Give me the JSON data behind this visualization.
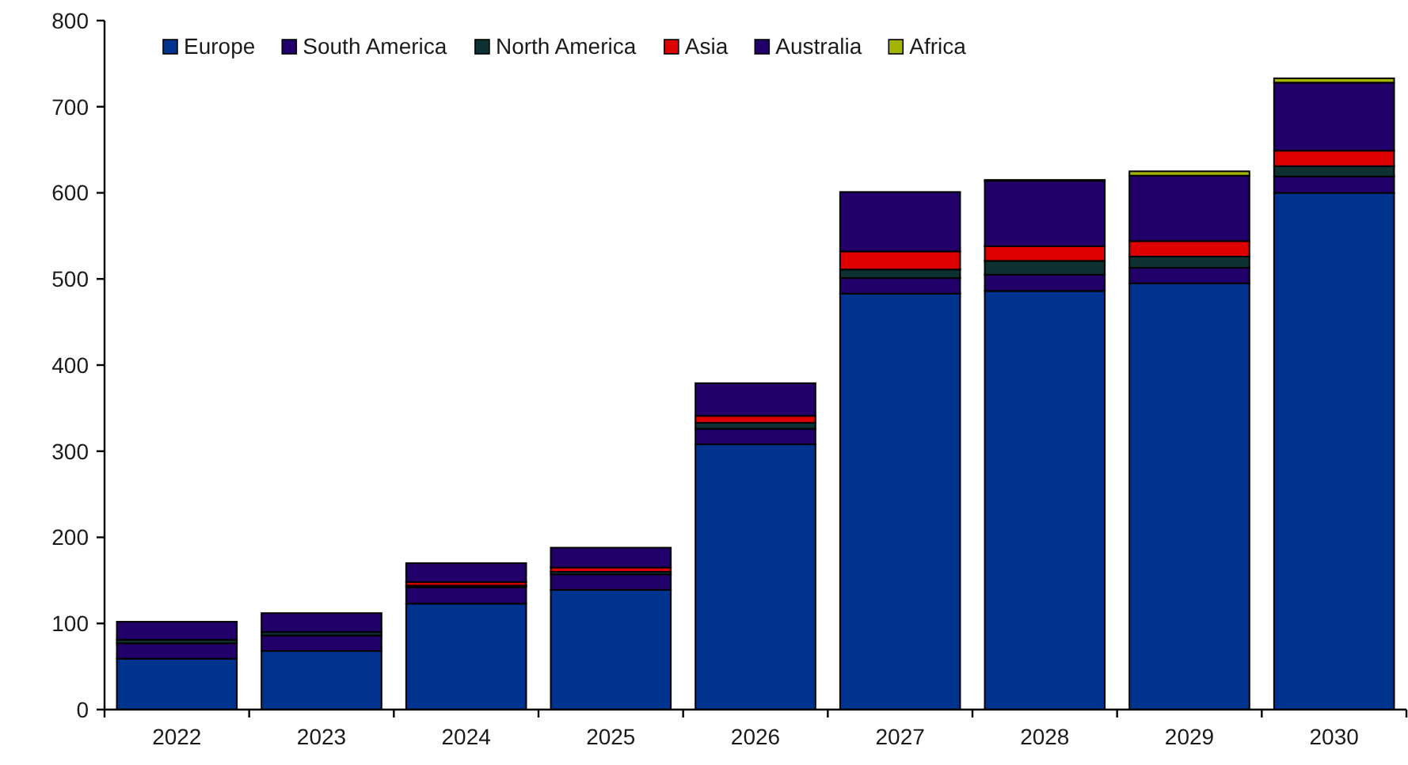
{
  "chart_data": {
    "type": "bar",
    "stacked": true,
    "legend": "top left",
    "categories": [
      "2022",
      "2023",
      "2024",
      "2025",
      "2026",
      "2027",
      "2028",
      "2029",
      "2030"
    ],
    "series": [
      {
        "name": "Europe",
        "color": "#00338d",
        "values": [
          59,
          68,
          123,
          139,
          308,
          483,
          486,
          495,
          600
        ]
      },
      {
        "name": "South America",
        "color": "#22006a",
        "values": [
          18,
          18,
          19,
          18,
          18,
          18,
          19,
          18,
          19
        ]
      },
      {
        "name": "North America",
        "color": "#0d3030",
        "values": [
          4,
          4,
          2,
          3,
          7,
          10,
          16,
          13,
          12
        ]
      },
      {
        "name": "Asia",
        "color": "#dd0000",
        "values": [
          0,
          0,
          4,
          5,
          8,
          21,
          17,
          18,
          18
        ]
      },
      {
        "name": "Australia",
        "color": "#22006a",
        "values": [
          21,
          22,
          22,
          23,
          38,
          69,
          76,
          76,
          79
        ]
      },
      {
        "name": "Africa",
        "color": "#a4b400",
        "values": [
          0,
          0,
          0,
          0,
          0,
          0,
          1,
          5,
          5
        ]
      }
    ],
    "ylim": [
      0,
      800
    ],
    "yticks": [
      0,
      100,
      200,
      300,
      400,
      500,
      600,
      700,
      800
    ]
  }
}
